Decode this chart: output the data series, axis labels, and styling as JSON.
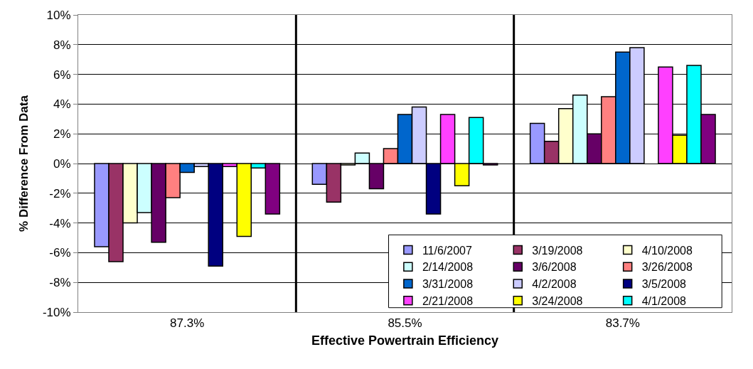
{
  "chart_data": {
    "type": "bar",
    "xlabel": "Effective Powertrain Efficiency",
    "ylabel": "% Difference From Data",
    "categories": [
      "87.3%",
      "85.5%",
      "83.7%"
    ],
    "ylim": [
      -10,
      10
    ],
    "yticks": [
      {
        "value": -10,
        "label": "-10%"
      },
      {
        "value": -8,
        "label": "-8%"
      },
      {
        "value": -6,
        "label": "-6%"
      },
      {
        "value": -4,
        "label": "-4%"
      },
      {
        "value": -2,
        "label": "-2%"
      },
      {
        "value": 0,
        "label": "0%"
      },
      {
        "value": 2,
        "label": "2%"
      },
      {
        "value": 4,
        "label": "4%"
      },
      {
        "value": 6,
        "label": "6%"
      },
      {
        "value": 8,
        "label": "8%"
      },
      {
        "value": 10,
        "label": "10%"
      }
    ],
    "grid": true,
    "legend": "bottom right",
    "series": [
      {
        "name": "11/6/2007",
        "color": "#9999ff",
        "values": [
          -5.6,
          -1.4,
          2.7
        ]
      },
      {
        "name": "3/19/2008",
        "color": "#993366",
        "values": [
          -6.6,
          -2.6,
          1.5
        ]
      },
      {
        "name": "4/10/2008",
        "color": "#ffffcc",
        "values": [
          -4.0,
          -0.1,
          3.7
        ]
      },
      {
        "name": "2/14/2008",
        "color": "#ccffff",
        "values": [
          -3.3,
          0.7,
          4.6
        ]
      },
      {
        "name": "3/6/2008",
        "color": "#660066",
        "values": [
          -5.3,
          -1.7,
          2.0
        ]
      },
      {
        "name": "3/26/2008",
        "color": "#ff8080",
        "values": [
          -2.3,
          1.0,
          4.5
        ]
      },
      {
        "name": "3/31/2008",
        "color": "#0066cc",
        "values": [
          -0.6,
          3.3,
          7.5
        ]
      },
      {
        "name": "4/2/2008",
        "color": "#ccccff",
        "values": [
          -0.2,
          3.8,
          7.8
        ]
      },
      {
        "name": "3/5/2008",
        "color": "#000080",
        "values": [
          -6.9,
          -3.4,
          null
        ]
      },
      {
        "name": "2/21/2008",
        "color": "#ff40ff",
        "values": [
          -0.2,
          3.3,
          6.5
        ]
      },
      {
        "name": "3/24/2008",
        "color": "#ffff00",
        "values": [
          -4.9,
          -1.5,
          1.9
        ]
      },
      {
        "name": "4/1/2008",
        "color": "#00ffff",
        "values": [
          -0.3,
          3.1,
          6.6
        ]
      },
      {
        "color": "#800080",
        "values": [
          -3.4,
          -0.1,
          3.3
        ]
      }
    ]
  }
}
